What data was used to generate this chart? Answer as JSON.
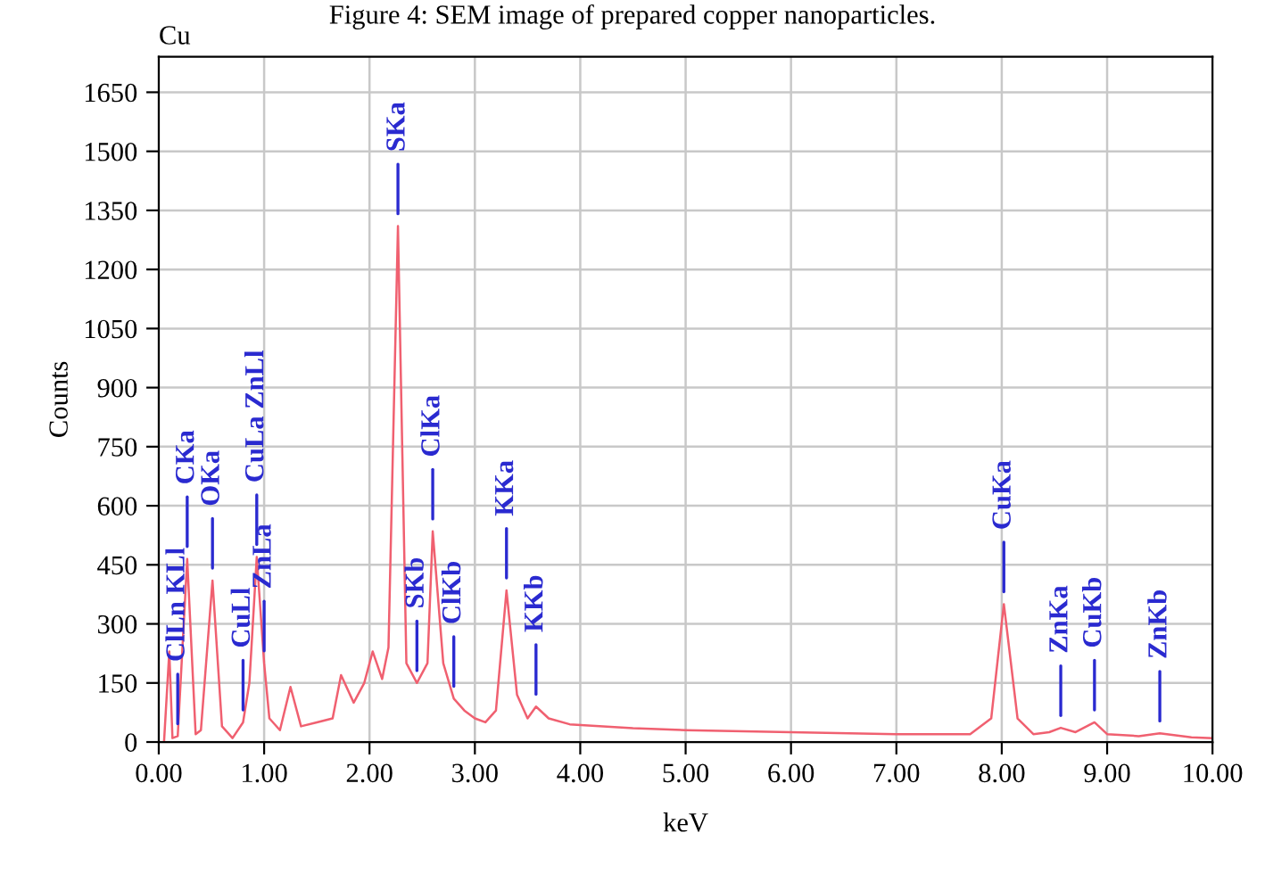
{
  "chart_data": {
    "type": "line",
    "title": "Figure 4: SEM image of prepared copper nanoparticles.",
    "xlabel": "keV",
    "ylabel": "Counts",
    "x": [
      0.05,
      0.1,
      0.13,
      0.18,
      0.27,
      0.35,
      0.4,
      0.51,
      0.6,
      0.7,
      0.8,
      0.86,
      0.93,
      1.0,
      1.05,
      1.15,
      1.25,
      1.35,
      1.5,
      1.65,
      1.73,
      1.85,
      1.95,
      2.03,
      2.12,
      2.18,
      2.27,
      2.35,
      2.45,
      2.55,
      2.6,
      2.7,
      2.8,
      2.9,
      3.0,
      3.1,
      3.2,
      3.3,
      3.4,
      3.5,
      3.58,
      3.7,
      3.9,
      4.5,
      5.0,
      6.0,
      7.0,
      7.7,
      7.9,
      8.02,
      8.15,
      8.3,
      8.45,
      8.56,
      8.7,
      8.88,
      9.0,
      9.3,
      9.5,
      9.8,
      10.0
    ],
    "series": [
      {
        "color": "#f06070",
        "values": [
          0,
          230,
          10,
          15,
          465,
          20,
          30,
          410,
          40,
          10,
          50,
          150,
          470,
          200,
          60,
          30,
          140,
          40,
          50,
          60,
          170,
          100,
          150,
          230,
          160,
          240,
          1310,
          200,
          150,
          200,
          535,
          200,
          110,
          80,
          60,
          50,
          80,
          385,
          120,
          60,
          90,
          60,
          45,
          35,
          30,
          25,
          20,
          20,
          60,
          350,
          60,
          20,
          25,
          36,
          25,
          50,
          20,
          15,
          22,
          12,
          10
        ]
      }
    ],
    "xlim": [
      0,
      10
    ],
    "ylim": [
      0,
      1740
    ],
    "xticks": [
      {
        "value": 0,
        "label": "0.00"
      },
      {
        "value": 1,
        "label": "1.00"
      },
      {
        "value": 2,
        "label": "2.00"
      },
      {
        "value": 3,
        "label": "3.00"
      },
      {
        "value": 4,
        "label": "4.00"
      },
      {
        "value": 5,
        "label": "5.00"
      },
      {
        "value": 6,
        "label": "6.00"
      },
      {
        "value": 7,
        "label": "7.00"
      },
      {
        "value": 8,
        "label": "8.00"
      },
      {
        "value": 9,
        "label": "9.00"
      },
      {
        "value": 10,
        "label": "10.00"
      }
    ],
    "yticks": [
      0,
      150,
      300,
      450,
      600,
      750,
      900,
      1050,
      1200,
      1350,
      1500,
      1650
    ],
    "grid": true,
    "marker": "none",
    "line_style": "solid",
    "legend": false,
    "annotations": [
      "Cu",
      {
        "text": "CKa",
        "x": 0.27,
        "y": 465
      },
      {
        "text": "ClLn KLl",
        "x": 0.18,
        "y": 15
      },
      {
        "text": "OKa",
        "x": 0.51,
        "y": 410
      },
      {
        "text": "CuLl",
        "x": 0.8,
        "y": 50
      },
      {
        "text": "CuLa ZnLl",
        "x": 0.93,
        "y": 470
      },
      {
        "text": "ZnLa",
        "x": 1.0,
        "y": 200
      },
      {
        "text": "SKa",
        "x": 2.27,
        "y": 1310
      },
      {
        "text": "SKb",
        "x": 2.45,
        "y": 150
      },
      {
        "text": "ClKa",
        "x": 2.6,
        "y": 535
      },
      {
        "text": "ClKb",
        "x": 2.8,
        "y": 110
      },
      {
        "text": "KKa",
        "x": 3.3,
        "y": 385
      },
      {
        "text": "KKb",
        "x": 3.58,
        "y": 90
      },
      {
        "text": "CuKa",
        "x": 8.02,
        "y": 350
      },
      {
        "text": "ZnKa",
        "x": 8.56,
        "y": 36
      },
      {
        "text": "CuKb",
        "x": 8.88,
        "y": 50
      },
      {
        "text": "ZnKb",
        "x": 9.5,
        "y": 22
      }
    ]
  }
}
